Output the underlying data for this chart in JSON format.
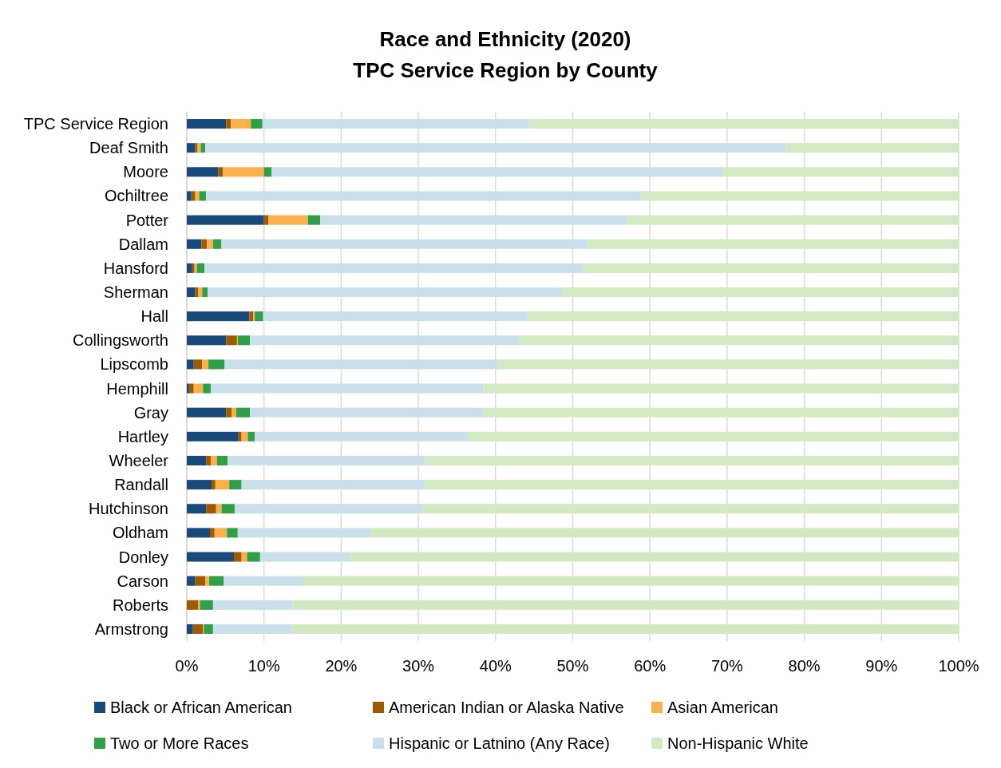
{
  "chart_data": {
    "type": "bar",
    "orientation": "horizontal",
    "stacked": true,
    "title": "Race and Ethnicity (2020)\nTPC Service Region by County",
    "categories": [
      "TPC Service Region",
      "Deaf Smith",
      "Moore",
      "Ochiltree",
      "Potter",
      "Dallam",
      "Hansford",
      "Sherman",
      "Hall",
      "Collingsworth",
      "Lipscomb",
      "Hemphill",
      "Gray",
      "Hartley",
      "Wheeler",
      "Randall",
      "Hutchinson",
      "Oldham",
      "Donley",
      "Carson",
      "Roberts",
      "Armstrong"
    ],
    "series": [
      {
        "name": "Black or African American",
        "color": "#1a4a7a",
        "values": [
          5.1,
          1.1,
          4.1,
          0.6,
          10.0,
          1.9,
          0.7,
          1.1,
          8.1,
          5.1,
          0.9,
          0.3,
          5.1,
          6.7,
          2.5,
          3.2,
          2.5,
          3.0,
          6.1,
          1.1,
          0,
          0.8
        ]
      },
      {
        "name": "American Indian or Alaska Native",
        "color": "#9c5b00",
        "values": [
          0.6,
          0.3,
          0.6,
          0.5,
          0.6,
          0.7,
          0.3,
          0.4,
          0.5,
          1.4,
          1.1,
          0.6,
          0.7,
          0.4,
          0.6,
          0.5,
          1.3,
          0.6,
          1.0,
          1.3,
          1.5,
          1.3
        ]
      },
      {
        "name": "Asian American",
        "color": "#fbb04e",
        "values": [
          2.6,
          0.4,
          5.3,
          0.5,
          5.1,
          0.8,
          0.3,
          0.5,
          0.2,
          0.1,
          0.8,
          1.2,
          0.6,
          0.8,
          0.8,
          1.8,
          0.7,
          1.6,
          0.7,
          0.5,
          0.2,
          0.1
        ]
      },
      {
        "name": "Two or More Races",
        "color": "#339e4a",
        "values": [
          1.5,
          0.6,
          1.0,
          0.9,
          1.6,
          1.1,
          1.0,
          0.7,
          1.1,
          1.6,
          2.1,
          1.0,
          1.8,
          0.9,
          1.4,
          1.6,
          1.7,
          1.4,
          1.7,
          1.9,
          1.7,
          1.2
        ]
      },
      {
        "name": "Hispanic or Latnino (Any Race)",
        "color": "#c9e0ea",
        "values": [
          34.6,
          75.2,
          58.4,
          56.4,
          39.8,
          47.3,
          49.0,
          45.9,
          34.3,
          34.8,
          35.4,
          35.3,
          30.2,
          27.6,
          25.6,
          23.7,
          24.3,
          17.3,
          11.7,
          10.3,
          10.3,
          10.2
        ]
      },
      {
        "name": "Non-Hispanic White",
        "color": "#d3e9c3",
        "values": [
          55.6,
          22.3,
          30.6,
          41.2,
          42.9,
          48.2,
          48.7,
          51.4,
          55.8,
          57.0,
          59.7,
          61.6,
          61.6,
          63.6,
          69.1,
          69.2,
          69.5,
          76.1,
          78.8,
          84.9,
          86.3,
          86.4
        ]
      }
    ],
    "xlim": [
      0,
      100
    ],
    "xticks": [
      {
        "value": 0,
        "label": "0%"
      },
      {
        "value": 10,
        "label": "10%"
      },
      {
        "value": 20,
        "label": "20%"
      },
      {
        "value": 30,
        "label": "30%"
      },
      {
        "value": 40,
        "label": "40%"
      },
      {
        "value": 50,
        "label": "50%"
      },
      {
        "value": 60,
        "label": "60%"
      },
      {
        "value": 70,
        "label": "70%"
      },
      {
        "value": 80,
        "label": "80%"
      },
      {
        "value": 90,
        "label": "90%"
      },
      {
        "value": 100,
        "label": "100%"
      }
    ],
    "grid": "x",
    "legend": "bottom"
  }
}
